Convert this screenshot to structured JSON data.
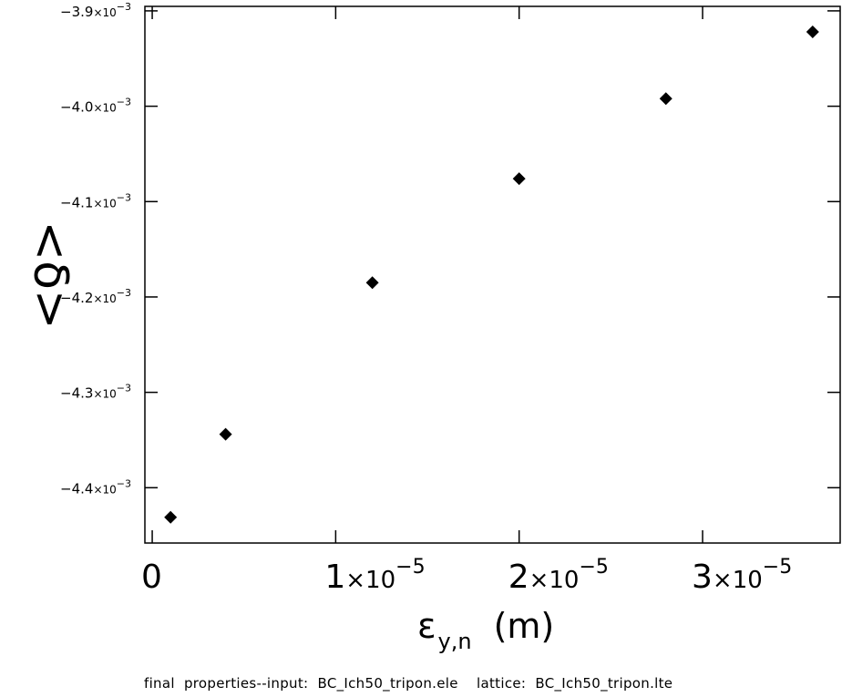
{
  "chart_data": {
    "type": "scatter",
    "title": "",
    "xlabel": "ε",
    "xlabel_subscript": "y,n",
    "xlabel_unit": "(m)",
    "ylabel": "<δ>",
    "xlim": [
      -4e-07,
      3.75e-05
    ],
    "ylim": [
      -0.004458,
      -0.0038953
    ],
    "x_ticks": [
      {
        "value": 0,
        "mantissa": "0",
        "times": "",
        "exponent": ""
      },
      {
        "value": 1e-05,
        "mantissa": "1",
        "times": "×10",
        "exponent": "−5"
      },
      {
        "value": 2e-05,
        "mantissa": "2",
        "times": "×10",
        "exponent": "−5"
      },
      {
        "value": 3e-05,
        "mantissa": "3",
        "times": "×10",
        "exponent": "−5"
      }
    ],
    "y_ticks": [
      {
        "value": -0.0039,
        "mantissa": "−3.9",
        "times": "×10",
        "exponent": "−3"
      },
      {
        "value": -0.004,
        "mantissa": "−4.0",
        "times": "×10",
        "exponent": "−3"
      },
      {
        "value": -0.0041,
        "mantissa": "−4.1",
        "times": "×10",
        "exponent": "−3"
      },
      {
        "value": -0.0042,
        "mantissa": "−4.2",
        "times": "×10",
        "exponent": "−3"
      },
      {
        "value": -0.0043,
        "mantissa": "−4.3",
        "times": "×10",
        "exponent": "−3"
      },
      {
        "value": -0.0044,
        "mantissa": "−4.4",
        "times": "×10",
        "exponent": "−3"
      }
    ],
    "grid": false,
    "series": [
      {
        "marker": "diamond",
        "color": "#000000",
        "points": [
          {
            "x": 1e-06,
            "y": -0.004431
          },
          {
            "x": 4e-06,
            "y": -0.004344
          },
          {
            "x": 1.2e-05,
            "y": -0.004185
          },
          {
            "x": 2e-05,
            "y": -0.004076
          },
          {
            "x": 2.8e-05,
            "y": -0.003992
          },
          {
            "x": 3.6e-05,
            "y": -0.003922
          }
        ]
      }
    ]
  },
  "caption": "final  properties--input:  BC_Ich50_tripon.ele    lattice:  BC_Ich50_tripon.lte"
}
